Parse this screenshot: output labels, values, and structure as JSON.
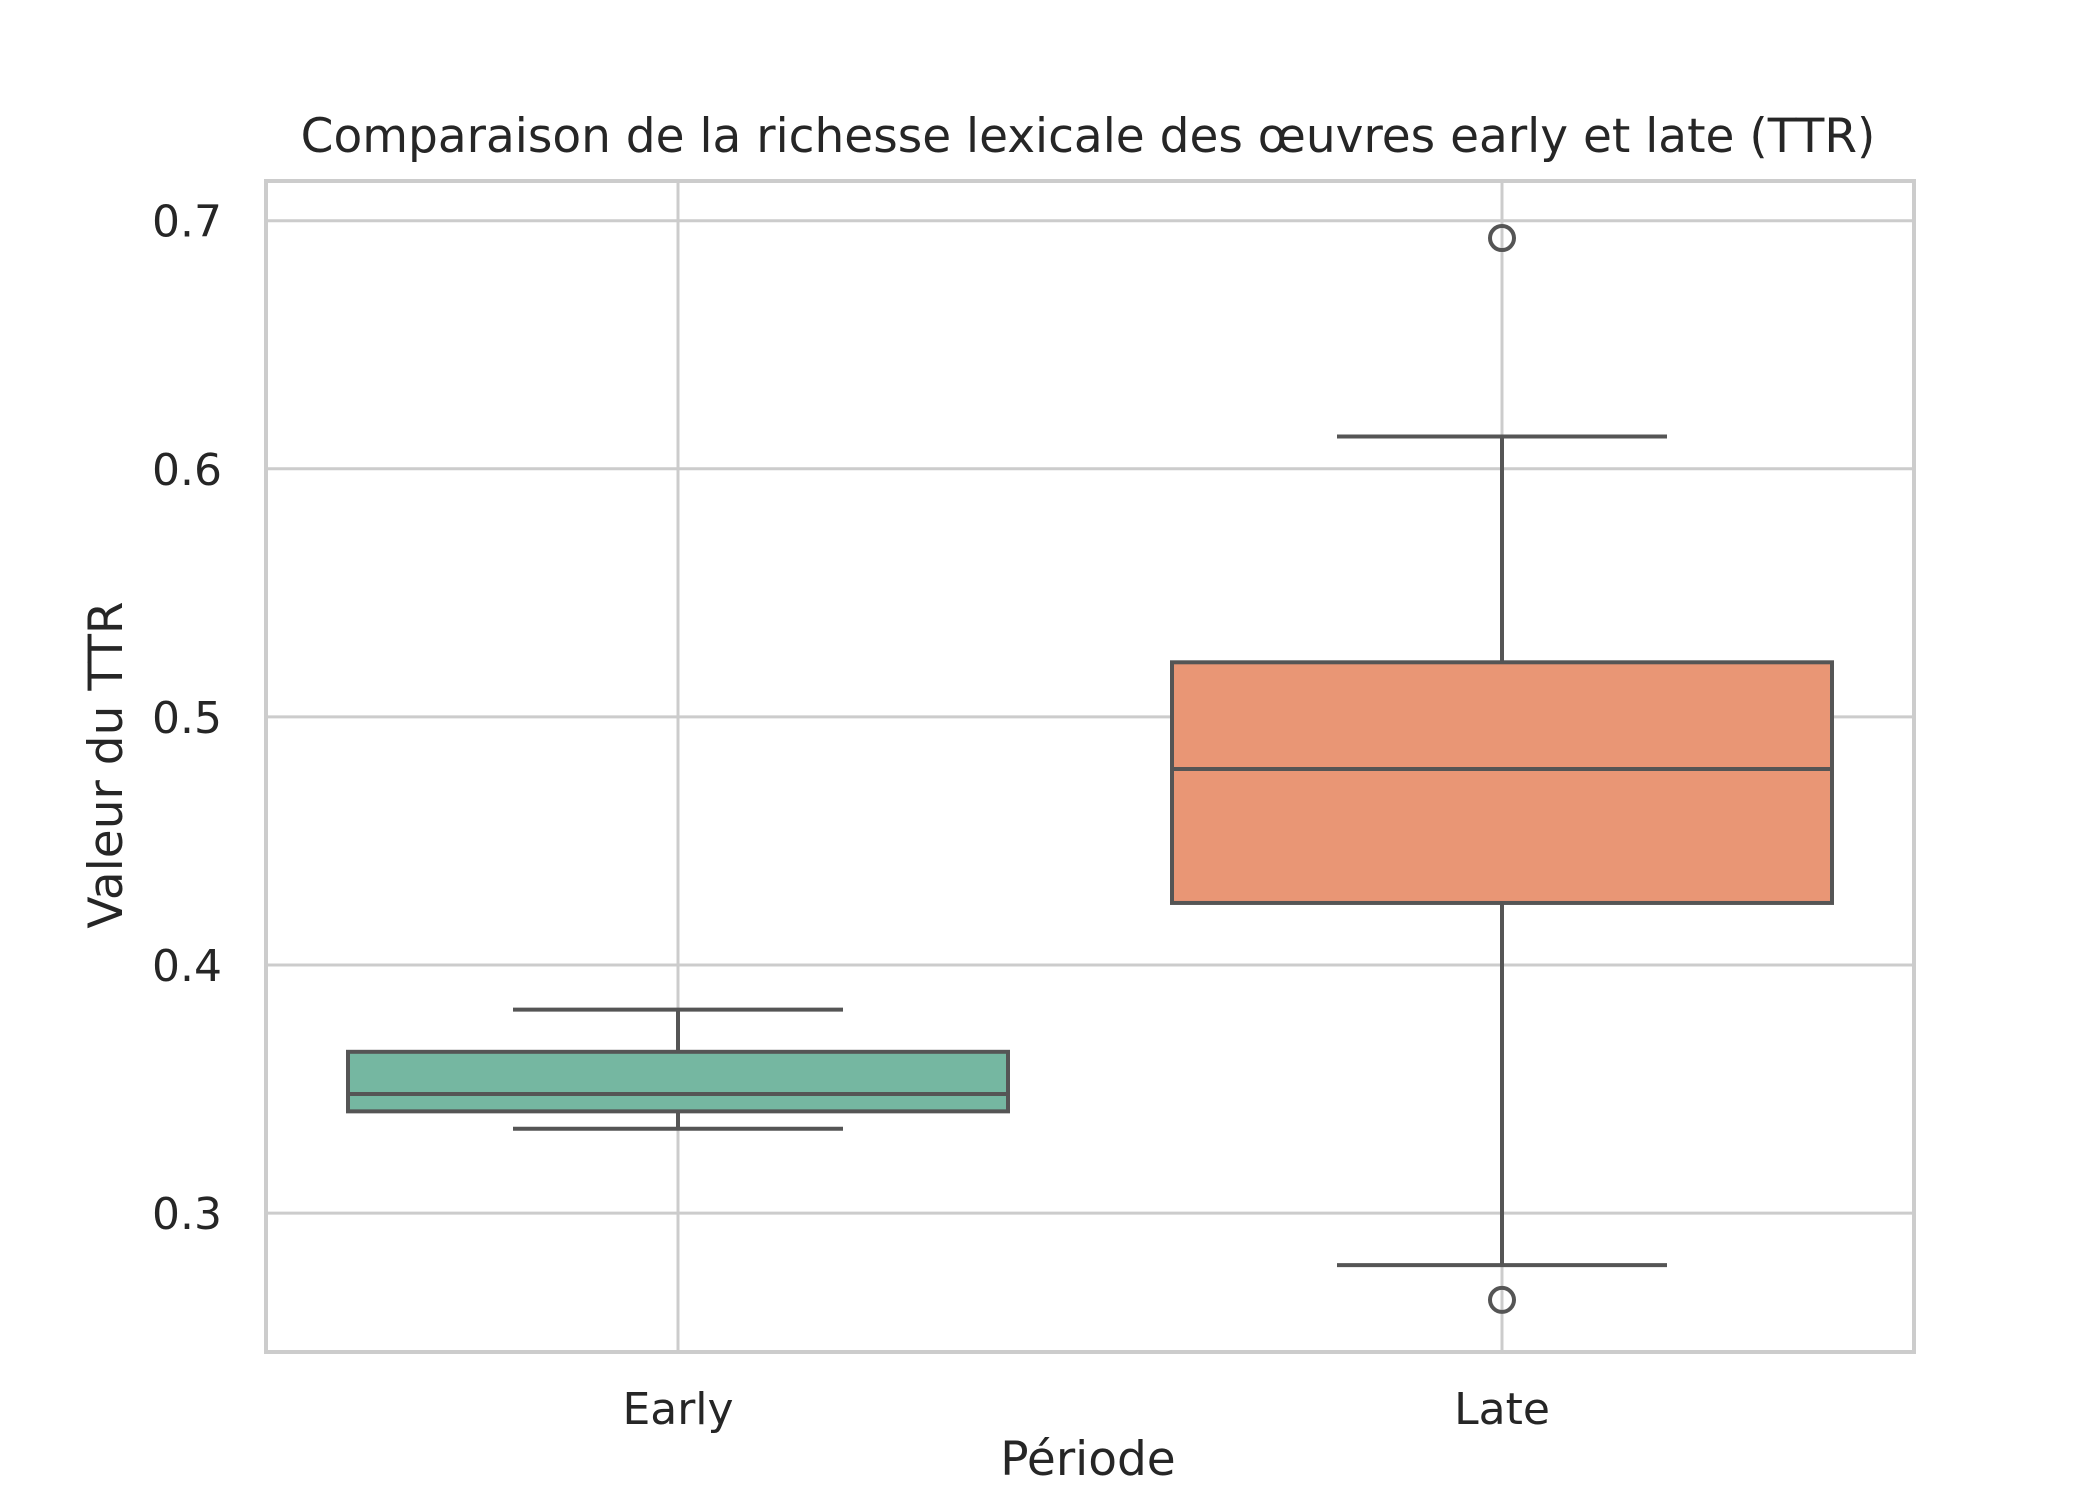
{
  "chart_data": {
    "type": "box",
    "title": "Comparaison de la richesse lexicale des œuvres early et late (TTR)",
    "xlabel": "Période",
    "ylabel": "Valeur du TTR",
    "categories": [
      "Early",
      "Late"
    ],
    "ylim": [
      0.244,
      0.716
    ],
    "yticks": [
      0.3,
      0.4,
      0.5,
      0.6,
      0.7
    ],
    "ytick_labels": [
      "0.3",
      "0.4",
      "0.5",
      "0.6",
      "0.7"
    ],
    "grid": true,
    "legend": "none",
    "series": [
      {
        "category": "Early",
        "color": "#75b7a1",
        "whisker_low": 0.334,
        "q1": 0.341,
        "median": 0.348,
        "q3": 0.365,
        "whisker_high": 0.382,
        "outliers": []
      },
      {
        "category": "Late",
        "color": "#e99675",
        "whisker_low": 0.279,
        "q1": 0.425,
        "median": 0.479,
        "q3": 0.522,
        "whisker_high": 0.613,
        "outliers": [
          0.265,
          0.693
        ]
      }
    ]
  }
}
